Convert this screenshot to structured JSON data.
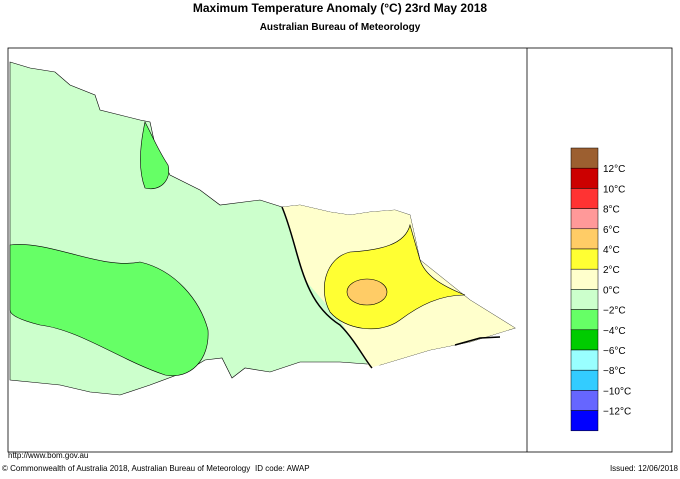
{
  "header": {
    "title": "Maximum Temperature Anomaly (°C)  23rd May 2018",
    "subtitle": "Australian Bureau of Meteorology"
  },
  "legend": {
    "colors": [
      "#9c5f30",
      "#cc0000",
      "#ff3333",
      "#ff9999",
      "#ffcc66",
      "#ffff33",
      "#ffffcc",
      "#ccffcc",
      "#66ff66",
      "#00cc00",
      "#99ffff",
      "#33ccff",
      "#6666ff",
      "#0000ff"
    ],
    "labels": [
      "12°C",
      "10°C",
      "8°C",
      "6°C",
      "4°C",
      "2°C",
      "0°C",
      "−2°C",
      "−4°C",
      "−6°C",
      "−8°C",
      "−10°C",
      "−12°C"
    ]
  },
  "footer": {
    "url": "http://www.bom.gov.au",
    "copyright": "© Commonwealth of Australia 2018, Australian Bureau of Meteorology",
    "id_code": "ID code: AWAP",
    "issued": "Issued: 12/06/2018"
  }
}
